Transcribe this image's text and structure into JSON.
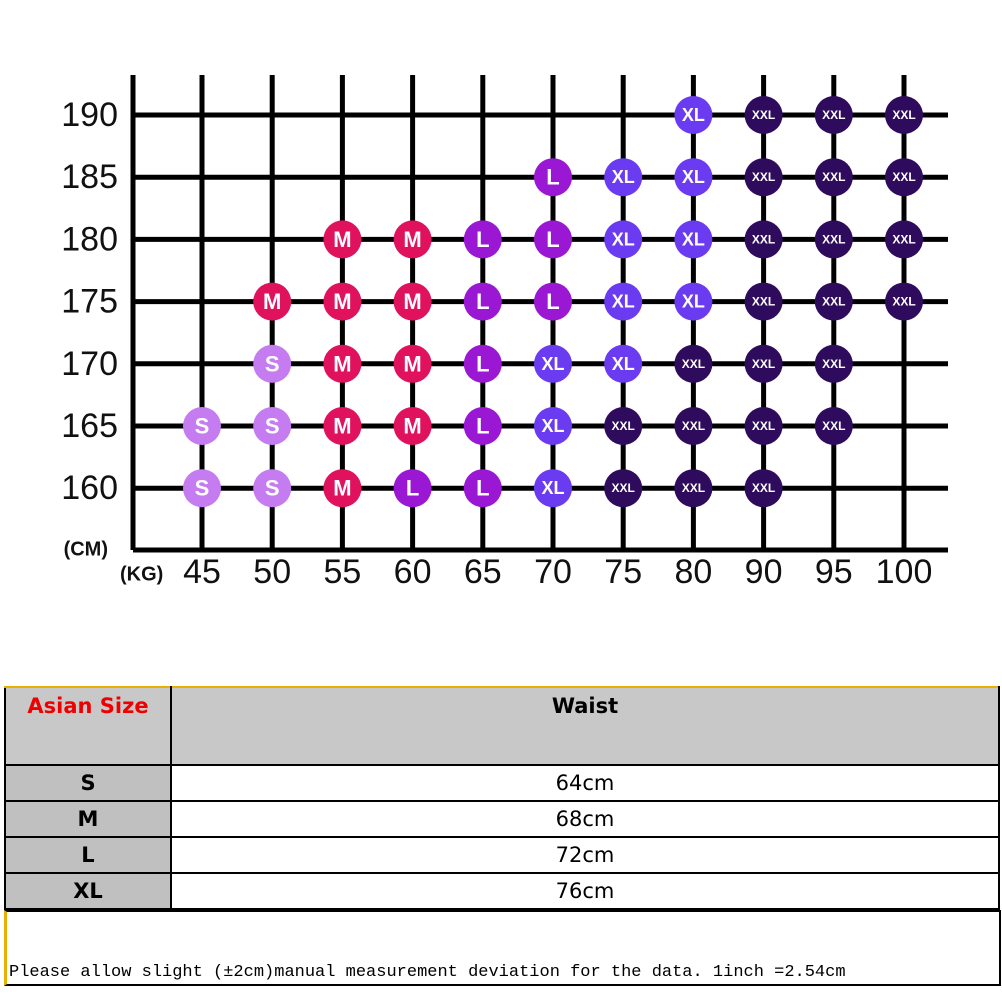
{
  "grid": {
    "height_unit": "(CM)",
    "weight_unit": "(KG)",
    "weights": [
      45,
      50,
      55,
      60,
      65,
      70,
      75,
      80,
      90,
      95,
      100
    ],
    "size_colors": {
      "S": "#c57cf0",
      "M": "#e0125e",
      "L": "#9a18d4",
      "XL": "#6a3bf0",
      "XXL": "#2e0b5c"
    },
    "rows": [
      {
        "height": 190,
        "sizes": [
          null,
          null,
          null,
          null,
          null,
          null,
          null,
          "XL",
          "XXL",
          "XXL",
          "XXL"
        ]
      },
      {
        "height": 185,
        "sizes": [
          null,
          null,
          null,
          null,
          null,
          "L",
          "XL",
          "XL",
          "XXL",
          "XXL",
          "XXL"
        ]
      },
      {
        "height": 180,
        "sizes": [
          null,
          null,
          "M",
          "M",
          "L",
          "L",
          "XL",
          "XL",
          "XXL",
          "XXL",
          "XXL"
        ]
      },
      {
        "height": 175,
        "sizes": [
          null,
          "M",
          "M",
          "M",
          "L",
          "L",
          "XL",
          "XL",
          "XXL",
          "XXL",
          "XXL"
        ]
      },
      {
        "height": 170,
        "sizes": [
          null,
          "S",
          "M",
          "M",
          "L",
          "XL",
          "XL",
          "XXL",
          "XXL",
          "XXL",
          null
        ]
      },
      {
        "height": 165,
        "sizes": [
          "S",
          "S",
          "M",
          "M",
          "L",
          "XL",
          "XXL",
          "XXL",
          "XXL",
          "XXL",
          null
        ]
      },
      {
        "height": 160,
        "sizes": [
          "S",
          "S",
          "M",
          "L",
          "L",
          "XL",
          "XXL",
          "XXL",
          "XXL",
          null,
          null
        ]
      }
    ]
  },
  "table": {
    "header": [
      "Asian Size",
      "Waist"
    ],
    "rows": [
      [
        "S",
        "64cm"
      ],
      [
        "M",
        "68cm"
      ],
      [
        "L",
        "72cm"
      ],
      [
        "XL",
        "76cm"
      ]
    ]
  },
  "note": "Please allow slight (±2cm)manual measurement deviation for the data. 1inch =2.54cm"
}
